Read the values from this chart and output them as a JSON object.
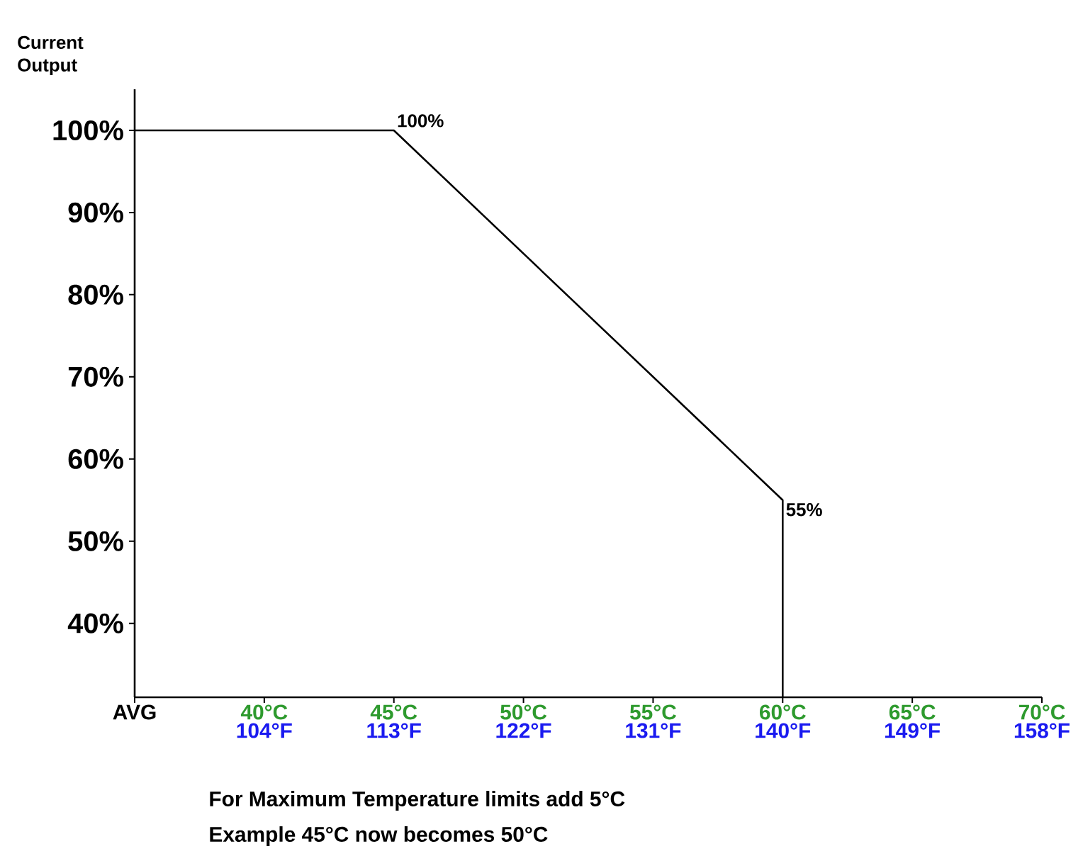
{
  "chart_data": {
    "type": "line",
    "ylabel": "Current Output",
    "xlim": [
      35,
      70
    ],
    "xticks": [
      {
        "value": 35,
        "label": "AVG"
      },
      {
        "value": 40,
        "label": "40°C"
      },
      {
        "value": 45,
        "label": "45°C"
      },
      {
        "value": 50,
        "label": "50°C"
      },
      {
        "value": 55,
        "label": "55°C"
      },
      {
        "value": 60,
        "label": "60°C"
      },
      {
        "value": 65,
        "label": "65°C"
      },
      {
        "value": 70,
        "label": "70°C"
      }
    ],
    "x2lim": [
      95,
      158
    ],
    "x2ticks": [
      {
        "value": 104,
        "label": "104°F"
      },
      {
        "value": 113,
        "label": "113°F"
      },
      {
        "value": 122,
        "label": "122°F"
      },
      {
        "value": 131,
        "label": "131°F"
      },
      {
        "value": 140,
        "label": "140°F"
      },
      {
        "value": 149,
        "label": "149°F"
      },
      {
        "value": 158,
        "label": "158°F"
      }
    ],
    "ylim": [
      31,
      105
    ],
    "yticks": [
      {
        "value": 40,
        "label": "40%"
      },
      {
        "value": 50,
        "label": "50%"
      },
      {
        "value": 60,
        "label": "60%"
      },
      {
        "value": 70,
        "label": "70%"
      },
      {
        "value": 80,
        "label": "80%"
      },
      {
        "value": 90,
        "label": "90%"
      },
      {
        "value": 100,
        "label": "100%"
      }
    ],
    "series": [
      {
        "color": "#000000",
        "x": [
          35,
          45,
          60,
          60
        ],
        "values": [
          100,
          100,
          55,
          31
        ]
      }
    ],
    "annotations": [
      {
        "text": "100%",
        "x": 45,
        "y": 100
      },
      {
        "text": "55%",
        "x": 60,
        "y": 55
      },
      "For Maximum Temperature limits add 5°C",
      "Example 45°C now becomes 50°C"
    ]
  }
}
